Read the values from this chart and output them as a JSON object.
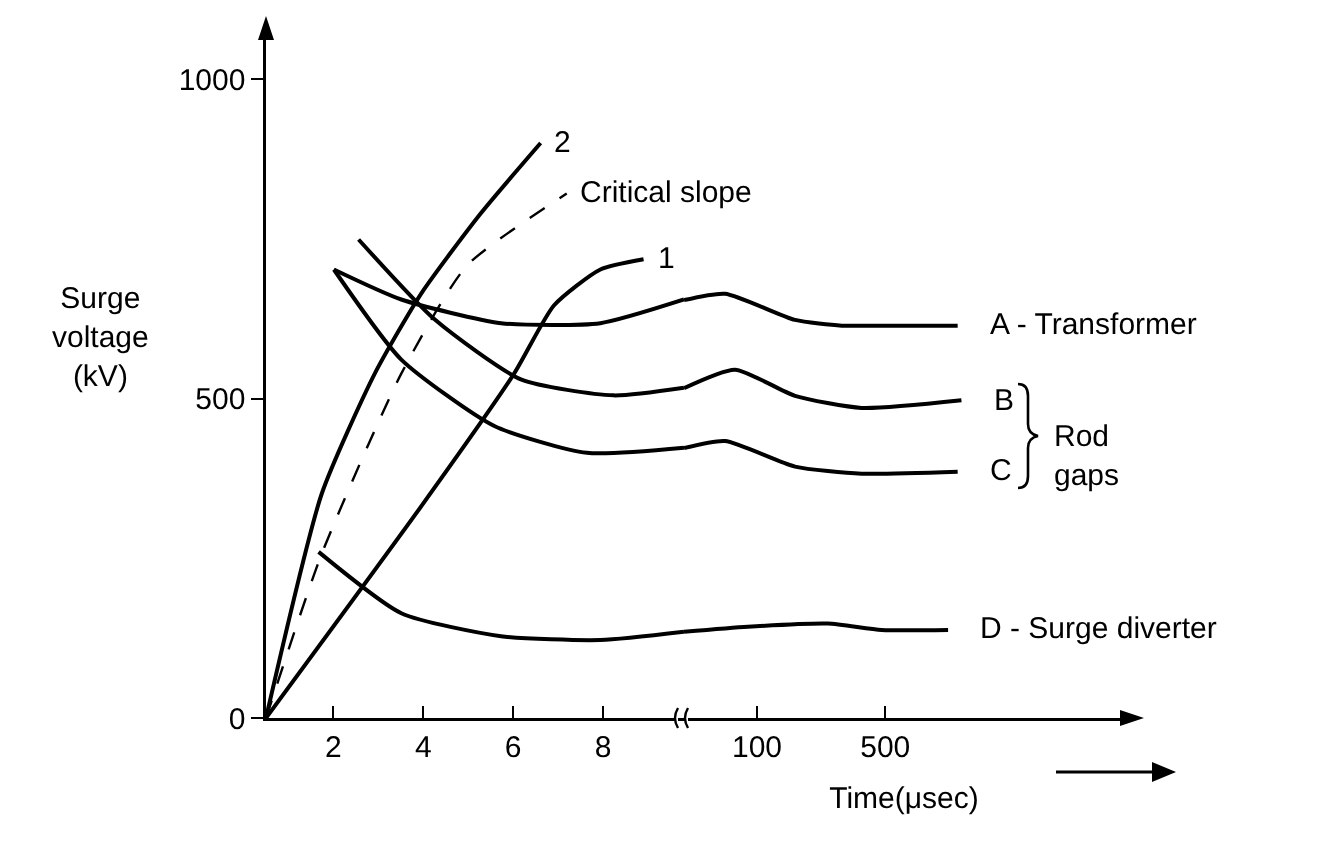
{
  "chart_data": [
    {
      "type": "line",
      "ylabel": "Surge\nvoltage\n(kV)",
      "xlim": [
        0.5,
        9.8
      ],
      "xticks": [
        2,
        4,
        6,
        8
      ],
      "ylim": [
        0,
        1080
      ],
      "yticks": [
        0,
        500,
        1000
      ],
      "series": [
        {
          "name": "2",
          "color": "#000000",
          "x": [
            0.5,
            1.74,
            2.92,
            3.96,
            5.28,
            6.61
          ],
          "values": [
            0,
            351,
            539,
            665,
            790,
            900
          ]
        },
        {
          "name": "1",
          "color": "#000000",
          "x": [
            0.5,
            3.96,
            6.02,
            6.91,
            7.94,
            8.9
          ],
          "values": [
            0,
            332,
            539,
            646,
            702,
            718
          ]
        },
        {
          "name": "Critical slope",
          "color": "#000000",
          "line_style": "dashed",
          "x": [
            0.5,
            1.74,
            3.51,
            4.97,
            7.19
          ],
          "values": [
            0,
            257,
            539,
            708,
            821
          ]
        },
        {
          "color": "#000000",
          "x": [
            2.01,
            3.51,
            5.73,
            7.94,
            9.8
          ],
          "values": [
            702,
            655,
            618,
            618,
            655
          ]
        },
        {
          "color": "#000000",
          "x": [
            2.56,
            4.25,
            6.17,
            8.23,
            9.8
          ],
          "values": [
            749,
            624,
            530,
            505,
            517
          ]
        },
        {
          "color": "#000000",
          "x": [
            2.01,
            3.51,
            5.58,
            7.64,
            9.8
          ],
          "values": [
            702,
            561,
            457,
            415,
            423
          ]
        },
        {
          "color": "#000000",
          "x": [
            1.67,
            3.51,
            5.73,
            7.94,
            9.8
          ],
          "values": [
            260,
            164,
            128,
            122,
            135
          ]
        }
      ]
    },
    {
      "type": "line",
      "xlabel": "Time(μsec)",
      "log": "x",
      "xlim": [
        40,
        10000
      ],
      "xticks": [
        100,
        500
      ],
      "ylim": [
        0,
        1000
      ],
      "yticks": [
        0,
        500,
        1000
      ],
      "tick_labels": "x",
      "annotations": [
        "Rod\ngaps"
      ],
      "series": [
        {
          "name": "A - Transformer",
          "color": "#000000",
          "x": [
            40,
            67,
            161,
            290,
            478,
            1240
          ],
          "values": [
            655,
            665,
            624,
            615,
            615,
            615
          ]
        },
        {
          "name": "B",
          "color": "#000000",
          "x": [
            40,
            76,
            161,
            372,
            1300
          ],
          "values": [
            517,
            546,
            505,
            486,
            498
          ]
        },
        {
          "name": "C",
          "color": "#000000",
          "x": [
            40,
            67,
            161,
            372,
            1240
          ],
          "values": [
            423,
            434,
            394,
            383,
            386
          ]
        },
        {
          "name": "D - Surge diverter",
          "color": "#000000",
          "x": [
            40,
            89,
            243,
            478,
            1100
          ],
          "values": [
            135,
            143,
            148,
            138,
            138
          ]
        }
      ]
    }
  ]
}
